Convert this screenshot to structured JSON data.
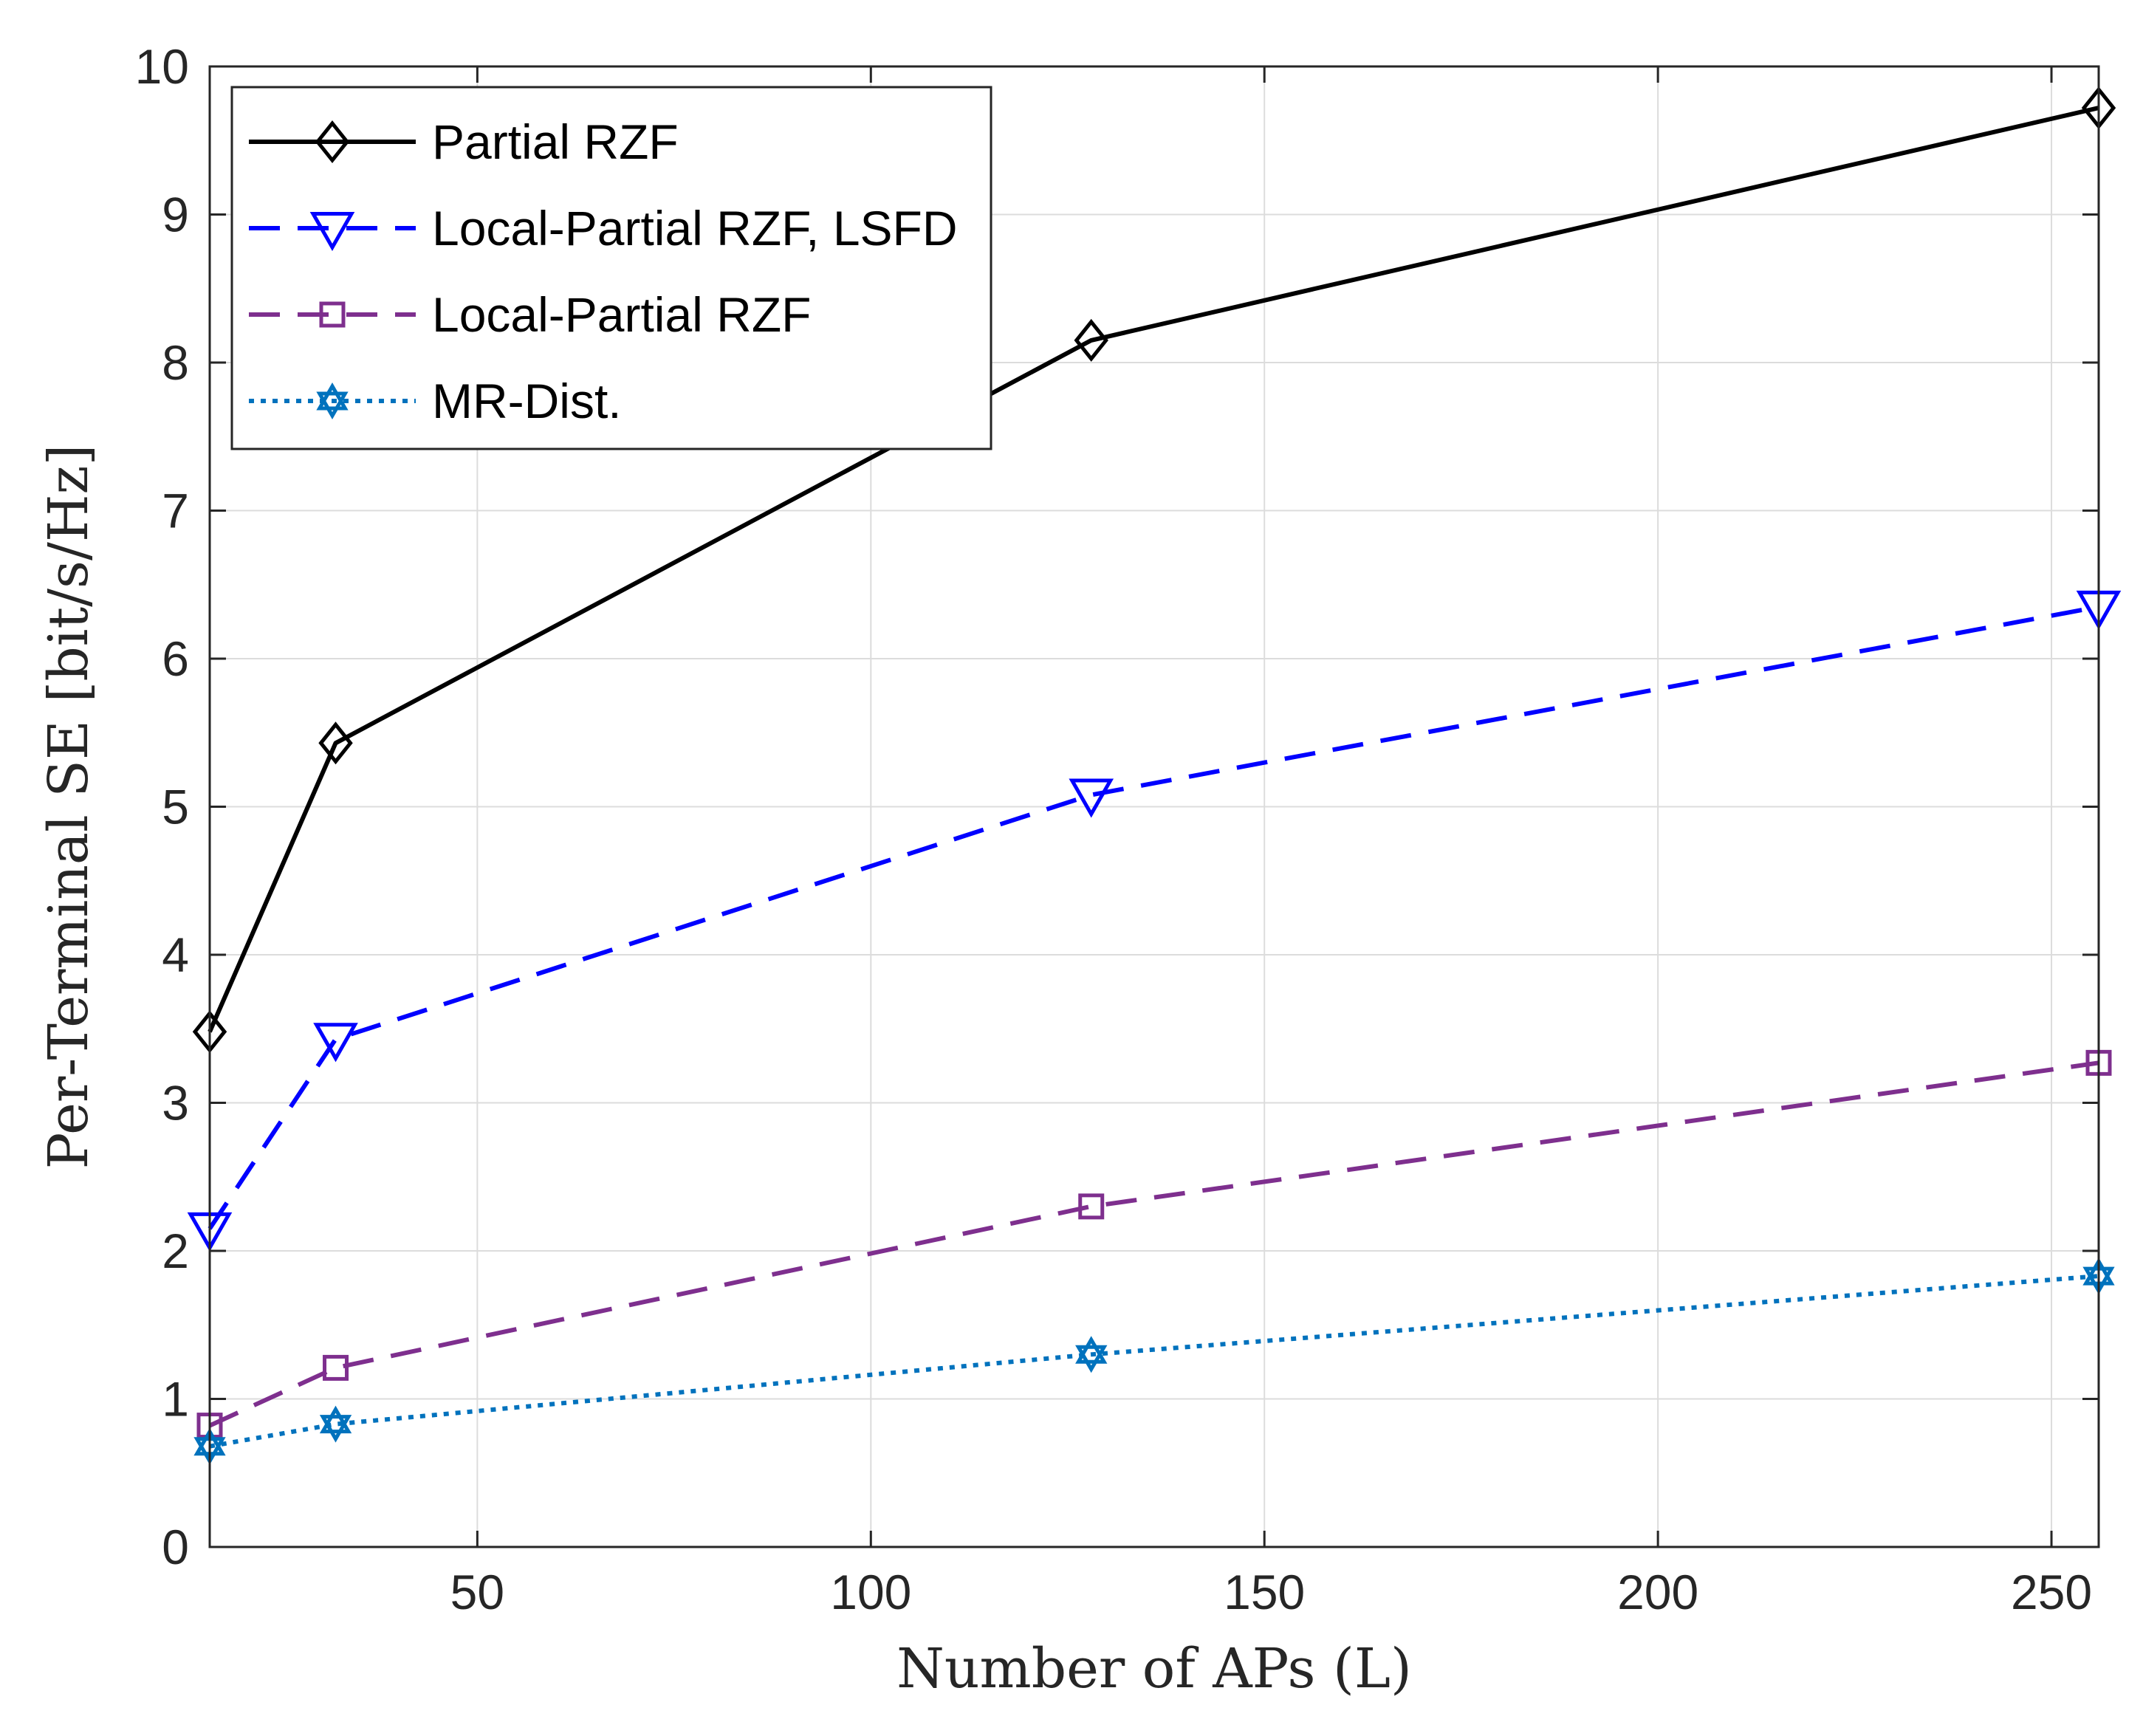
{
  "chart_data": {
    "type": "line",
    "title": "",
    "xlabel": "Number of APs (L)",
    "ylabel": "Per-Terminal SE [bit/s/Hz]",
    "xlim": [
      16,
      256
    ],
    "ylim": [
      0,
      10
    ],
    "xticks": [
      50,
      100,
      150,
      200,
      250
    ],
    "yticks": [
      0,
      1,
      2,
      3,
      4,
      5,
      6,
      7,
      8,
      9,
      10
    ],
    "grid": true,
    "legend_position": "top-left",
    "x": [
      16,
      32,
      128,
      256
    ],
    "series": [
      {
        "name": "Partial RZF",
        "values": [
          3.48,
          5.43,
          8.15,
          9.72
        ],
        "color": "#000000",
        "line_style": "solid",
        "marker": "diamond"
      },
      {
        "name": "Local-Partial RZF, LSFD",
        "values": [
          2.15,
          3.43,
          5.08,
          6.35
        ],
        "color": "#0000ff",
        "line_style": "dashed",
        "marker": "triangle-down"
      },
      {
        "name": "Local-Partial RZF",
        "values": [
          0.82,
          1.21,
          2.3,
          3.27
        ],
        "color": "#7e2f8e",
        "line_style": "dashed",
        "marker": "square"
      },
      {
        "name": "MR-Dist.",
        "values": [
          0.68,
          0.83,
          1.3,
          1.83
        ],
        "color": "#0072bd",
        "line_style": "dotted",
        "marker": "hexagram"
      }
    ]
  }
}
